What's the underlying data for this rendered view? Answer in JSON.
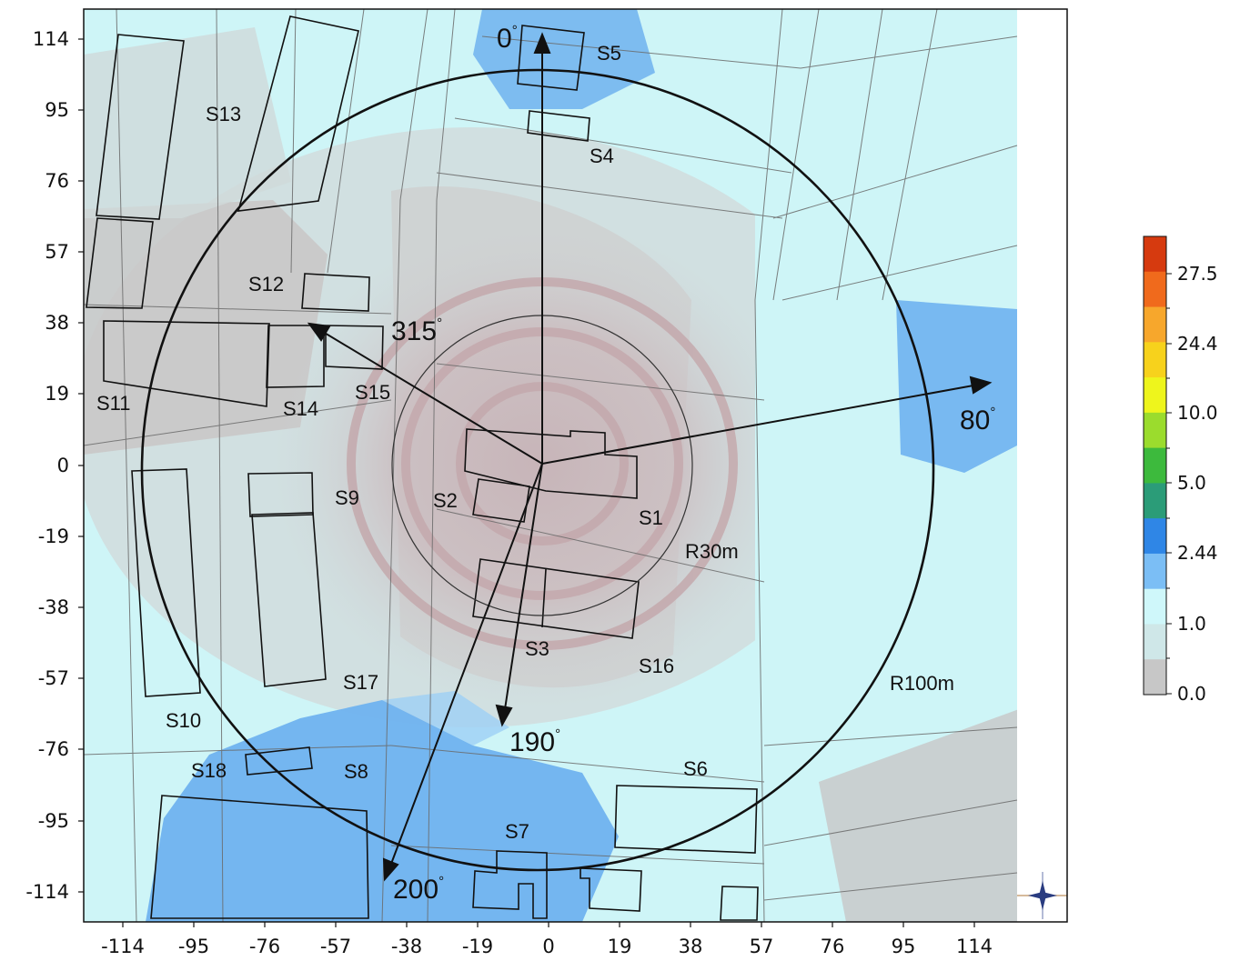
{
  "map": {
    "x_ticks": [
      "-114",
      "-95",
      "-76",
      "-57",
      "-38",
      "-19",
      "0",
      "19",
      "38",
      "57",
      "76",
      "95",
      "114"
    ],
    "y_ticks": [
      "114",
      "95",
      "76",
      "57",
      "38",
      "19",
      "0",
      "-19",
      "-38",
      "-57",
      "-76",
      "-95",
      "-114"
    ],
    "buildings": [
      "S1",
      "S2",
      "S3",
      "S4",
      "S5",
      "S6",
      "S7",
      "S8",
      "S9",
      "S10",
      "S11",
      "S12",
      "S13",
      "S14",
      "S15",
      "S16",
      "S17",
      "S18"
    ],
    "rings": [
      "R30m",
      "R100m"
    ],
    "directions": [
      "0",
      "80",
      "190",
      "200",
      "315"
    ],
    "degree_symbol": "°"
  },
  "colorbar": {
    "labels": [
      "27.5",
      "24.4",
      "10.0",
      "5.0",
      "2.44",
      "1.0",
      "0.0"
    ],
    "colors": [
      "#d63a0f",
      "#f06a1c",
      "#f7a72c",
      "#f7d21c",
      "#eef51c",
      "#9bdc2d",
      "#3dba3d",
      "#2b9c78",
      "#2f86e6",
      "#7bbef5",
      "#cff7fa",
      "#cfe7e8",
      "#c7c7c7"
    ]
  },
  "colors": {
    "light_cyan": "#cef5f7",
    "gray_zone": "#c9c9c9",
    "blue_zone": "#6fb2ef",
    "mauve": "#c7b6b9"
  },
  "icons": [
    "compass-icon"
  ]
}
